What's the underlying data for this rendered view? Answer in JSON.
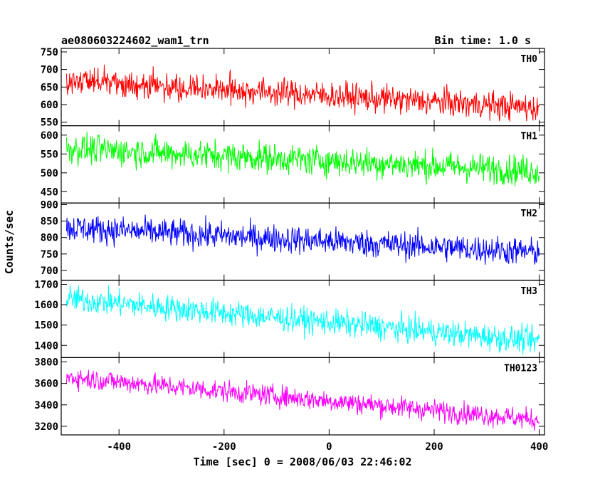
{
  "header": {
    "title": "ae080603224602_wam1_trn",
    "bin_time": "Bin time: 1.0 s"
  },
  "chart_data": {
    "type": "line",
    "layout": "stacked-panels",
    "xlabel": "Time [sec] 0 = 2008/06/03 22:46:02",
    "ylabel": "Counts/sec",
    "xlim": [
      -510,
      410
    ],
    "x_ticks": [
      -400,
      -200,
      0,
      200,
      400
    ],
    "x_start": -500,
    "x_end": 400,
    "x_step": 1,
    "grid": false,
    "panels": [
      {
        "name": "TH0",
        "color": "#ff0000",
        "ylim": [
          540,
          760
        ],
        "yticks": [
          550,
          600,
          650,
          700,
          750
        ],
        "trend_start": 670,
        "trend_end": 590,
        "noise": 28
      },
      {
        "name": "TH1",
        "color": "#00ff00",
        "ylim": [
          420,
          625
        ],
        "yticks": [
          450,
          500,
          550,
          600
        ],
        "trend_start": 565,
        "trend_end": 505,
        "noise": 28
      },
      {
        "name": "TH2",
        "color": "#0000ff",
        "ylim": [
          670,
          905
        ],
        "yticks": [
          700,
          750,
          800,
          850,
          900
        ],
        "trend_start": 830,
        "trend_end": 755,
        "noise": 30
      },
      {
        "name": "TH3",
        "color": "#00ffff",
        "ylim": [
          1340,
          1720
        ],
        "yticks": [
          1400,
          1500,
          1600,
          1700
        ],
        "trend_start": 1630,
        "trend_end": 1420,
        "noise": 45
      },
      {
        "name": "TH0123",
        "color": "#ff00ff",
        "ylim": [
          3120,
          3840
        ],
        "yticks": [
          3200,
          3400,
          3600,
          3800
        ],
        "trend_start": 3660,
        "trend_end": 3260,
        "noise": 70
      }
    ]
  }
}
